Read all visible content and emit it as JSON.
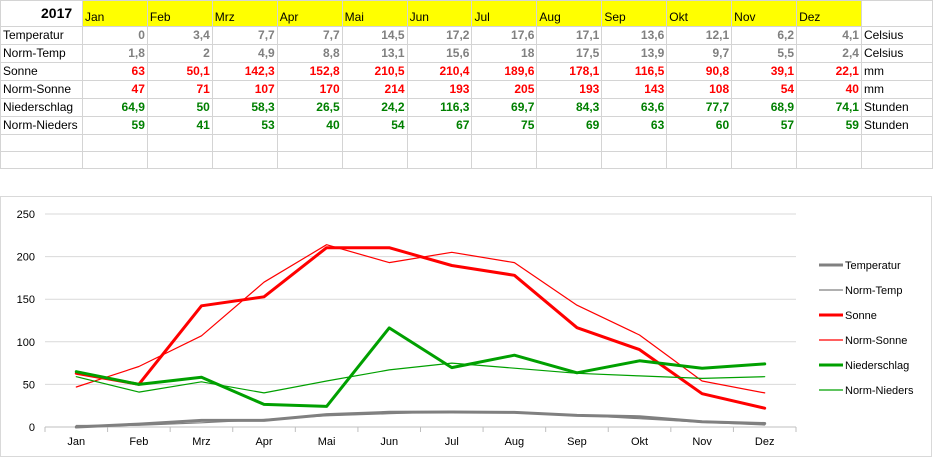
{
  "sheet": {
    "year": "2017",
    "months": [
      "Jan",
      "Feb",
      "Mrz",
      "Apr",
      "Mai",
      "Jun",
      "Jul",
      "Aug",
      "Sep",
      "Okt",
      "Nov",
      "Dez"
    ],
    "rows": [
      {
        "label": "Temperatur",
        "values": [
          "0",
          "3,4",
          "7,7",
          "7,7",
          "14,5",
          "17,2",
          "17,6",
          "17,1",
          "13,6",
          "12,1",
          "6,2",
          "4,1"
        ],
        "unit": "Celsius",
        "color": "#808080"
      },
      {
        "label": "Norm-Temp",
        "values": [
          "1,8",
          "2",
          "4,9",
          "8,8",
          "13,1",
          "15,6",
          "18",
          "17,5",
          "13,9",
          "9,7",
          "5,5",
          "2,4"
        ],
        "unit": "Celsius",
        "color": "#808080"
      },
      {
        "label": "Sonne",
        "values": [
          "63",
          "50,1",
          "142,3",
          "152,8",
          "210,5",
          "210,4",
          "189,6",
          "178,1",
          "116,5",
          "90,8",
          "39,1",
          "22,1"
        ],
        "unit": "mm",
        "color": "#ff0000"
      },
      {
        "label": "Norm-Sonne",
        "values": [
          "47",
          "71",
          "107",
          "170",
          "214",
          "193",
          "205",
          "193",
          "143",
          "108",
          "54",
          "40"
        ],
        "unit": "mm",
        "color": "#ff0000"
      },
      {
        "label": "Niederschlag",
        "values": [
          "64,9",
          "50",
          "58,3",
          "26,5",
          "24,2",
          "116,3",
          "69,7",
          "84,3",
          "63,6",
          "77,7",
          "68,9",
          "74,1"
        ],
        "unit": "Stunden",
        "color": "#008000"
      },
      {
        "label": "Norm-Nieders",
        "values": [
          "59",
          "41",
          "53",
          "40",
          "54",
          "67",
          "75",
          "69",
          "63",
          "60",
          "57",
          "59"
        ],
        "unit": "Stunden",
        "color": "#008000"
      }
    ]
  },
  "chart_data": {
    "type": "line",
    "categories": [
      "Jan",
      "Feb",
      "Mrz",
      "Apr",
      "Mai",
      "Jun",
      "Jul",
      "Aug",
      "Sep",
      "Okt",
      "Nov",
      "Dez"
    ],
    "ylim": [
      0,
      250
    ],
    "yticks": [
      "0",
      "50",
      "100",
      "150",
      "200",
      "250"
    ],
    "grid": true,
    "legend_position": "right",
    "series": [
      {
        "name": "Temperatur",
        "values": [
          0,
          3.4,
          7.7,
          7.7,
          14.5,
          17.2,
          17.6,
          17.1,
          13.6,
          12.1,
          6.2,
          4.1
        ],
        "color": "#808080",
        "weight": "thick"
      },
      {
        "name": "Norm-Temp",
        "values": [
          1.8,
          2,
          4.9,
          8.8,
          13.1,
          15.6,
          18,
          17.5,
          13.9,
          9.7,
          5.5,
          2.4
        ],
        "color": "#808080",
        "weight": "thin"
      },
      {
        "name": "Sonne",
        "values": [
          63,
          50.1,
          142.3,
          152.8,
          210.5,
          210.4,
          189.6,
          178.1,
          116.5,
          90.8,
          39.1,
          22.1
        ],
        "color": "#ff0000",
        "weight": "thick"
      },
      {
        "name": "Norm-Sonne",
        "values": [
          47,
          71,
          107,
          170,
          214,
          193,
          205,
          193,
          143,
          108,
          54,
          40
        ],
        "color": "#ff0000",
        "weight": "thin"
      },
      {
        "name": "Niederschlag",
        "values": [
          64.9,
          50,
          58.3,
          26.5,
          24.2,
          116.3,
          69.7,
          84.3,
          63.6,
          77.7,
          68.9,
          74.1
        ],
        "color": "#00a000",
        "weight": "thick"
      },
      {
        "name": "Norm-Nieders",
        "values": [
          59,
          41,
          53,
          40,
          54,
          67,
          75,
          69,
          63,
          60,
          57,
          59
        ],
        "color": "#00a000",
        "weight": "thin"
      }
    ]
  }
}
